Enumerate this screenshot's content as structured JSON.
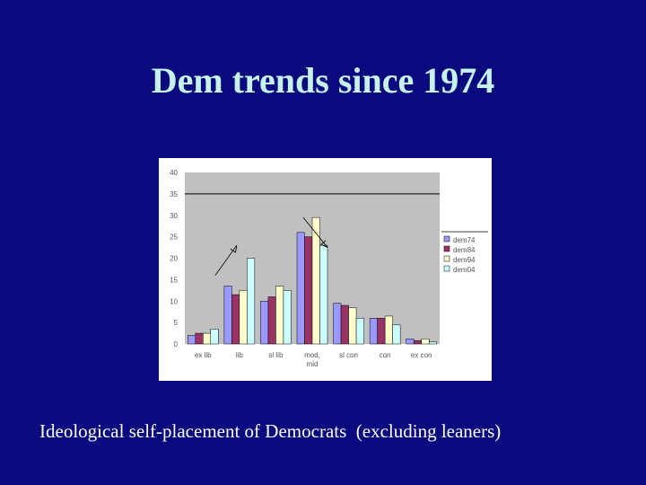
{
  "slide": {
    "title": "Dem trends since 1974",
    "caption": "Ideological self-placement of Democrats  (excluding leaners)"
  },
  "colors": {
    "background": "#0a0a7e",
    "title": "#c6f2ec",
    "plot_area": "#c0c0c0"
  },
  "chart_data": {
    "type": "bar",
    "title": "",
    "xlabel": "",
    "ylabel": "",
    "ylim": [
      0,
      40
    ],
    "yticks": [
      0,
      5,
      10,
      15,
      20,
      25,
      30,
      35,
      40
    ],
    "grid": "horizontal line at 35",
    "legend_position": "right",
    "categories": [
      "ex lib",
      "lib",
      "sl lib",
      "mod,\nmid",
      "sl con",
      "con",
      "ex con"
    ],
    "series": [
      {
        "name": "dem74",
        "color": "#9999ff",
        "values": [
          2,
          13.5,
          10,
          26,
          9.5,
          6,
          1.2
        ]
      },
      {
        "name": "dem84",
        "color": "#993366",
        "values": [
          2.5,
          11.5,
          11,
          25,
          9,
          6,
          0.8
        ]
      },
      {
        "name": "dem94",
        "color": "#ffffcc",
        "values": [
          2.5,
          12.5,
          13.5,
          29.5,
          8.5,
          6.5,
          1.2
        ]
      },
      {
        "name": "dem04",
        "color": "#ccffff",
        "values": [
          3.5,
          20,
          12.5,
          23,
          6,
          4.5,
          0.5
        ]
      }
    ],
    "annotations": [
      {
        "type": "arrow",
        "direction": "up-right",
        "near": "lib"
      },
      {
        "type": "arrow",
        "direction": "down-right",
        "near": "mod,\nmid"
      }
    ]
  }
}
